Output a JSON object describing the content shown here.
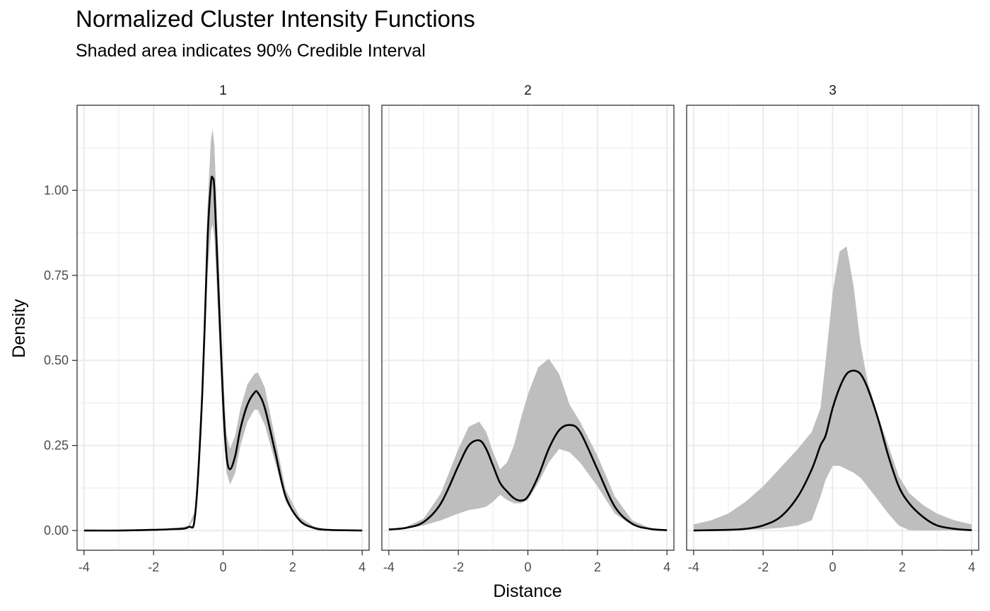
{
  "title": "Normalized Cluster Intensity Functions",
  "subtitle": "Shaded area indicates 90% Credible Interval",
  "chart_data": {
    "type": "line",
    "facet_by": "cluster",
    "xlabel": "Distance",
    "ylabel": "Density",
    "xlim": [
      -4.2,
      4.2
    ],
    "ylim": [
      -0.058,
      1.25
    ],
    "x_ticks": [
      -4,
      -2,
      0,
      2,
      4
    ],
    "y_ticks": [
      0,
      0.25,
      0.5,
      0.75,
      1
    ],
    "x_tick_labels": [
      "-4",
      "-2",
      "0",
      "2",
      "4"
    ],
    "y_tick_labels": [
      "0.00",
      "0.25",
      "0.50",
      "0.75",
      "1.00"
    ],
    "grid": true,
    "theme": "bw",
    "colors": {
      "line": "#000000",
      "ribbon": "#bebebe",
      "grid": "#ebebeb",
      "border": "#333333"
    },
    "panels": [
      {
        "label": "1",
        "mean": {
          "x": [
            -4,
            -3,
            -2,
            -1.5,
            -1,
            -0.8,
            -0.6,
            -0.45,
            -0.35,
            -0.3,
            -0.25,
            -0.15,
            0,
            0.1,
            0.2,
            0.35,
            0.5,
            0.7,
            0.9,
            1.0,
            1.2,
            1.5,
            1.8,
            2.2,
            2.6,
            3,
            4
          ],
          "y": [
            0,
            0,
            0.002,
            0.004,
            0.01,
            0.05,
            0.4,
            0.85,
            1.02,
            1.035,
            1.0,
            0.75,
            0.38,
            0.22,
            0.18,
            0.22,
            0.3,
            0.37,
            0.405,
            0.405,
            0.36,
            0.23,
            0.1,
            0.03,
            0.008,
            0.002,
            0
          ]
        },
        "lower": {
          "x": [
            -4,
            -3,
            -2,
            -1.5,
            -1,
            -0.8,
            -0.6,
            -0.45,
            -0.35,
            -0.3,
            -0.25,
            -0.15,
            0,
            0.1,
            0.2,
            0.35,
            0.5,
            0.7,
            0.9,
            1.0,
            1.2,
            1.5,
            1.8,
            2.2,
            2.6,
            3,
            4
          ],
          "y": [
            0,
            0,
            0.001,
            0.003,
            0.008,
            0.04,
            0.35,
            0.75,
            0.88,
            0.9,
            0.86,
            0.65,
            0.3,
            0.17,
            0.135,
            0.17,
            0.25,
            0.32,
            0.355,
            0.355,
            0.31,
            0.2,
            0.085,
            0.025,
            0.005,
            0.001,
            0
          ]
        },
        "upper": {
          "x": [
            -4,
            -3,
            -2,
            -1.5,
            -1,
            -0.8,
            -0.6,
            -0.45,
            -0.35,
            -0.3,
            -0.25,
            -0.15,
            0,
            0.1,
            0.2,
            0.35,
            0.5,
            0.7,
            0.9,
            1.0,
            1.2,
            1.5,
            1.8,
            2.2,
            2.6,
            3,
            4
          ],
          "y": [
            0.001,
            0.001,
            0.003,
            0.006,
            0.013,
            0.06,
            0.45,
            0.95,
            1.15,
            1.18,
            1.13,
            0.86,
            0.46,
            0.28,
            0.24,
            0.28,
            0.36,
            0.43,
            0.46,
            0.465,
            0.42,
            0.27,
            0.12,
            0.04,
            0.012,
            0.004,
            0.001
          ]
        }
      },
      {
        "label": "2",
        "mean": {
          "x": [
            -4,
            -3.5,
            -3,
            -2.5,
            -2,
            -1.7,
            -1.4,
            -1.2,
            -1.0,
            -0.8,
            -0.6,
            -0.4,
            -0.2,
            0,
            0.3,
            0.6,
            0.9,
            1.2,
            1.5,
            2,
            2.5,
            3,
            3.5,
            4
          ],
          "y": [
            0.003,
            0.008,
            0.025,
            0.08,
            0.19,
            0.25,
            0.265,
            0.24,
            0.19,
            0.14,
            0.115,
            0.095,
            0.088,
            0.1,
            0.16,
            0.24,
            0.295,
            0.31,
            0.29,
            0.18,
            0.07,
            0.02,
            0.005,
            0.001
          ]
        },
        "lower": {
          "x": [
            -4,
            -3.5,
            -3,
            -2.5,
            -2,
            -1.7,
            -1.4,
            -1.2,
            -1.0,
            -0.8,
            -0.6,
            -0.4,
            -0.2,
            0,
            0.3,
            0.6,
            0.9,
            1.2,
            1.5,
            2,
            2.5,
            3,
            3.5,
            4
          ],
          "y": [
            0.002,
            0.006,
            0.015,
            0.03,
            0.05,
            0.06,
            0.065,
            0.07,
            0.085,
            0.105,
            0.09,
            0.08,
            0.08,
            0.09,
            0.14,
            0.2,
            0.24,
            0.23,
            0.2,
            0.13,
            0.05,
            0.015,
            0.004,
            0.001
          ]
        },
        "upper": {
          "x": [
            -4,
            -3.5,
            -3,
            -2.5,
            -2,
            -1.7,
            -1.4,
            -1.2,
            -1.0,
            -0.8,
            -0.6,
            -0.4,
            -0.2,
            0,
            0.3,
            0.6,
            0.9,
            1.2,
            1.5,
            2,
            2.5,
            3,
            3.5,
            4
          ],
          "y": [
            0.004,
            0.011,
            0.035,
            0.11,
            0.24,
            0.305,
            0.32,
            0.29,
            0.23,
            0.18,
            0.2,
            0.25,
            0.33,
            0.4,
            0.48,
            0.505,
            0.46,
            0.37,
            0.32,
            0.22,
            0.1,
            0.03,
            0.008,
            0.002
          ]
        }
      },
      {
        "label": "3",
        "mean": {
          "x": [
            -4,
            -3.5,
            -3,
            -2.5,
            -2,
            -1.5,
            -1.0,
            -0.6,
            -0.35,
            -0.2,
            0,
            0.2,
            0.4,
            0.6,
            0.8,
            1.0,
            1.3,
            1.6,
            1.9,
            2.2,
            2.6,
            3,
            3.5,
            4
          ],
          "y": [
            0,
            0.001,
            0.002,
            0.005,
            0.015,
            0.04,
            0.1,
            0.18,
            0.25,
            0.28,
            0.36,
            0.42,
            0.46,
            0.47,
            0.46,
            0.42,
            0.33,
            0.22,
            0.13,
            0.08,
            0.04,
            0.015,
            0.005,
            0.001
          ]
        },
        "lower": {
          "x": [
            -4,
            -3.5,
            -3,
            -2.5,
            -2,
            -1.5,
            -1.0,
            -0.6,
            -0.35,
            -0.2,
            0,
            0.2,
            0.4,
            0.6,
            0.8,
            1.0,
            1.3,
            1.6,
            1.9,
            2.2,
            2.6,
            3,
            3.5,
            4
          ],
          "y": [
            0,
            0,
            0.001,
            0.002,
            0.004,
            0.008,
            0.015,
            0.03,
            0.1,
            0.15,
            0.19,
            0.19,
            0.18,
            0.17,
            0.155,
            0.13,
            0.09,
            0.05,
            0.015,
            0.001,
            0,
            0,
            0,
            0
          ]
        },
        "upper": {
          "x": [
            -4,
            -3.5,
            -3,
            -2.5,
            -2,
            -1.5,
            -1.0,
            -0.6,
            -0.35,
            -0.2,
            0,
            0.2,
            0.4,
            0.6,
            0.8,
            1.0,
            1.3,
            1.6,
            1.9,
            2.2,
            2.6,
            3,
            3.5,
            4
          ],
          "y": [
            0.018,
            0.03,
            0.05,
            0.085,
            0.13,
            0.185,
            0.24,
            0.29,
            0.36,
            0.5,
            0.7,
            0.82,
            0.835,
            0.72,
            0.55,
            0.44,
            0.34,
            0.25,
            0.16,
            0.11,
            0.075,
            0.05,
            0.03,
            0.018
          ]
        }
      }
    ]
  }
}
